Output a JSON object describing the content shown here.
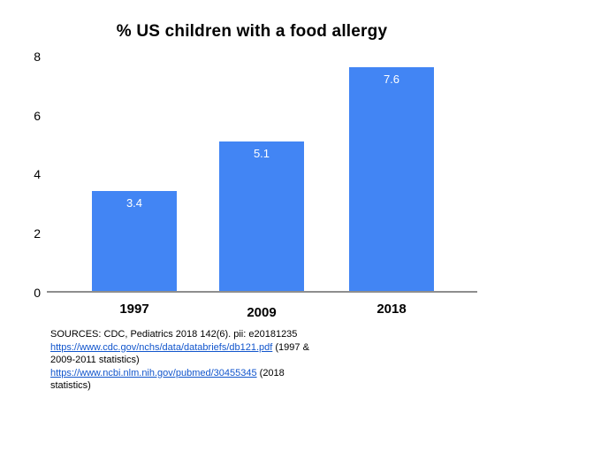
{
  "page": {
    "background_color": "#ffffff"
  },
  "chart_data": {
    "type": "bar",
    "title": "% US children with a food allergy",
    "categories": [
      "1997",
      "2009",
      "2018"
    ],
    "values": [
      3.4,
      5.1,
      7.6
    ],
    "data_labels": [
      "3.4",
      "5.1",
      "7.6"
    ],
    "xlabel": "",
    "ylabel": "",
    "ylim": [
      0,
      8
    ],
    "y_ticks": [
      0,
      2,
      4,
      6,
      8
    ],
    "grid": false,
    "legend_position": "none",
    "bar_color": "#4285f4",
    "data_label_color": "#ffffff",
    "axis_line_color": "#8e8e8e"
  },
  "sources": {
    "line1": "SOURCES: CDC, Pediatrics 2018 142(6). pii: e20181235",
    "link1_text": "https://www.cdc.gov/nchs/data/databriefs/db121.pdf",
    "link1_suffix": " (1997 &",
    "line3": "2009-2011 statistics)",
    "link2_text": "https://www.ncbi.nlm.nih.gov/pubmed/30455345",
    "link2_suffix": " (2018",
    "line5": "statistics)",
    "link_color": "#1155cc"
  }
}
